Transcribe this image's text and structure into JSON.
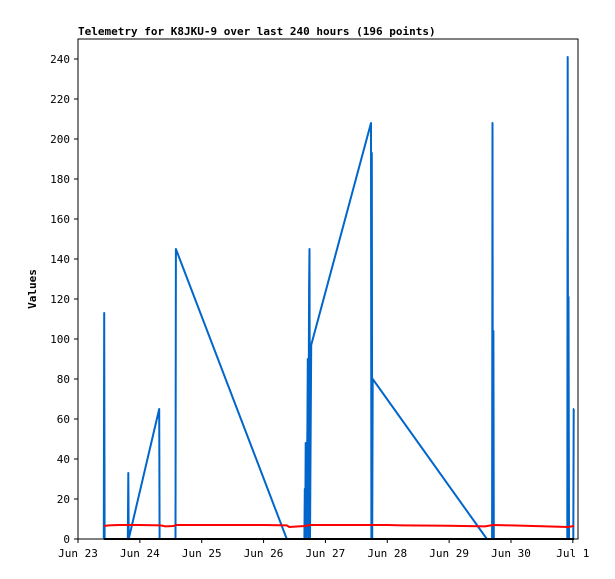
{
  "chart_data": {
    "type": "line",
    "title": "Telemetry for K8JKU-9 over last 240 hours (196 points)",
    "ylabel": "Values",
    "xlabel": "",
    "ylim": [
      0,
      250
    ],
    "xlim": [
      "2023-06-23T00:00",
      "2023-07-01T02:00"
    ],
    "yticks": [
      0,
      20,
      40,
      60,
      80,
      100,
      120,
      140,
      160,
      180,
      200,
      220,
      240
    ],
    "xticks": [
      {
        "label": "Jun 23",
        "t": "2023-06-23T00:00"
      },
      {
        "label": "Jun 24",
        "t": "2023-06-24T00:00"
      },
      {
        "label": "Jun 25",
        "t": "2023-06-25T00:00"
      },
      {
        "label": "Jun 26",
        "t": "2023-06-26T00:00"
      },
      {
        "label": "Jun 27",
        "t": "2023-06-27T00:00"
      },
      {
        "label": "Jun 28",
        "t": "2023-06-28T00:00"
      },
      {
        "label": "Jun 29",
        "t": "2023-06-29T00:00"
      },
      {
        "label": "Jun 30",
        "t": "2023-06-30T00:00"
      },
      {
        "label": "Jul 1",
        "t": "2023-07-01T00:00"
      }
    ],
    "grid": false,
    "legend": "none",
    "series": [
      {
        "color": "#0066cc",
        "points": [
          [
            "2023-06-23T10:00",
            0
          ],
          [
            "2023-06-23T10:10",
            113
          ],
          [
            "2023-06-23T10:20",
            0
          ],
          [
            "2023-06-23T19:20",
            0
          ],
          [
            "2023-06-23T19:30",
            33
          ],
          [
            "2023-06-23T19:40",
            0
          ],
          [
            "2023-06-24T07:30",
            65
          ],
          [
            "2023-06-24T07:40",
            0
          ],
          [
            "2023-06-24T13:50",
            0
          ],
          [
            "2023-06-24T14:00",
            145
          ],
          [
            "2023-06-26T09:00",
            0
          ],
          [
            "2023-06-26T15:50",
            0
          ],
          [
            "2023-06-26T16:00",
            25
          ],
          [
            "2023-06-26T16:10",
            0
          ],
          [
            "2023-06-26T16:20",
            48
          ],
          [
            "2023-06-26T16:30",
            0
          ],
          [
            "2023-06-26T17:00",
            55
          ],
          [
            "2023-06-26T17:10",
            90
          ],
          [
            "2023-06-26T17:20",
            0
          ],
          [
            "2023-06-26T17:40",
            127
          ],
          [
            "2023-06-26T17:50",
            145
          ],
          [
            "2023-06-26T18:00",
            0
          ],
          [
            "2023-06-26T18:30",
            97
          ],
          [
            "2023-06-27T17:40",
            208
          ],
          [
            "2023-06-27T17:50",
            0
          ],
          [
            "2023-06-27T18:00",
            193
          ],
          [
            "2023-06-27T18:10",
            0
          ],
          [
            "2023-06-27T18:20",
            80
          ],
          [
            "2023-06-29T14:40",
            0
          ],
          [
            "2023-06-29T14:50",
            0
          ],
          [
            "2023-06-29T16:40",
            0
          ],
          [
            "2023-06-29T16:50",
            208
          ],
          [
            "2023-06-29T17:00",
            0
          ],
          [
            "2023-06-29T17:10",
            104
          ],
          [
            "2023-06-29T17:20",
            0
          ],
          [
            "2023-06-30T21:50",
            0
          ],
          [
            "2023-06-30T22:00",
            241
          ],
          [
            "2023-06-30T22:10",
            0
          ],
          [
            "2023-06-30T22:20",
            121
          ],
          [
            "2023-06-30T22:30",
            0
          ],
          [
            "2023-07-01T00:10",
            0
          ],
          [
            "2023-07-01T00:20",
            65
          ],
          [
            "2023-07-01T00:30",
            65
          ]
        ]
      },
      {
        "color": "#ff0000",
        "points": [
          [
            "2023-06-23T10:00",
            6.5
          ],
          [
            "2023-06-23T12:00",
            6.8
          ],
          [
            "2023-06-23T16:00",
            7.0
          ],
          [
            "2023-06-24T00:00",
            7.0
          ],
          [
            "2023-06-24T08:00",
            6.8
          ],
          [
            "2023-06-24T10:00",
            6.3
          ],
          [
            "2023-06-24T13:00",
            6.5
          ],
          [
            "2023-06-24T14:00",
            7.0
          ],
          [
            "2023-06-25T00:00",
            7.0
          ],
          [
            "2023-06-26T00:00",
            7.0
          ],
          [
            "2023-06-26T09:00",
            6.8
          ],
          [
            "2023-06-26T10:00",
            6.0
          ],
          [
            "2023-06-26T16:00",
            6.5
          ],
          [
            "2023-06-26T18:00",
            7.0
          ],
          [
            "2023-06-27T00:00",
            7.0
          ],
          [
            "2023-06-28T00:00",
            7.0
          ],
          [
            "2023-06-28T06:00",
            6.8
          ],
          [
            "2023-06-29T00:00",
            6.6
          ],
          [
            "2023-06-29T14:00",
            6.3
          ],
          [
            "2023-06-29T17:00",
            7.0
          ],
          [
            "2023-06-30T00:00",
            6.8
          ],
          [
            "2023-06-30T12:00",
            6.4
          ],
          [
            "2023-06-30T22:00",
            6.0
          ],
          [
            "2023-07-01T00:30",
            6.5
          ]
        ]
      },
      {
        "color": "#000000",
        "points": [
          [
            "2023-06-23T10:00",
            0
          ],
          [
            "2023-07-01T00:30",
            0
          ]
        ]
      }
    ]
  }
}
